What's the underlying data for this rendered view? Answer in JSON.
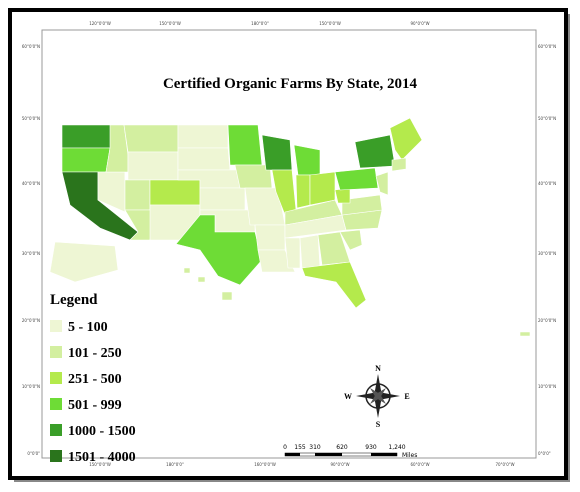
{
  "title": "Certified Organic Farms By State, 2014",
  "legend": {
    "title": "Legend",
    "items": [
      {
        "label": "5 - 100",
        "color": "#eef6d4"
      },
      {
        "label": "101 - 250",
        "color": "#d3efa0"
      },
      {
        "label": "251 - 500",
        "color": "#b4ea4c"
      },
      {
        "label": "501 - 999",
        "color": "#6edc36"
      },
      {
        "label": "1000 - 1500",
        "color": "#3a9e28"
      },
      {
        "label": "1501 - 4000",
        "color": "#2a741c"
      }
    ]
  },
  "compass": {
    "n": "N",
    "e": "E",
    "s": "S",
    "w": "W"
  },
  "scale": {
    "labels": [
      "0",
      "155",
      "310",
      "620",
      "930",
      "1,240"
    ],
    "unit": "Miles"
  },
  "graticule": {
    "top": [
      "120°0'0\"W",
      "150°0'0\"W",
      "180°0'0\"",
      "150°0'0\"W",
      "90°0'0\"W"
    ],
    "bottom": [
      "150°0'0\"W",
      "180°0'0\"",
      "160°0'0\"W",
      "90°0'0\"W",
      "60°0'0\"W",
      "70°0'0\"W"
    ],
    "left": [
      "60°0'0\"N",
      "50°0'0\"N",
      "40°0'0\"N",
      "30°0'0\"N",
      "20°0'0\"N",
      "10°0'0\"N",
      "0°0'0\""
    ],
    "right": [
      "60°0'0\"N",
      "50°0'0\"N",
      "40°0'0\"N",
      "30°0'0\"N",
      "20°0'0\"N",
      "10°0'0\"N",
      "0°0'0\""
    ]
  }
}
